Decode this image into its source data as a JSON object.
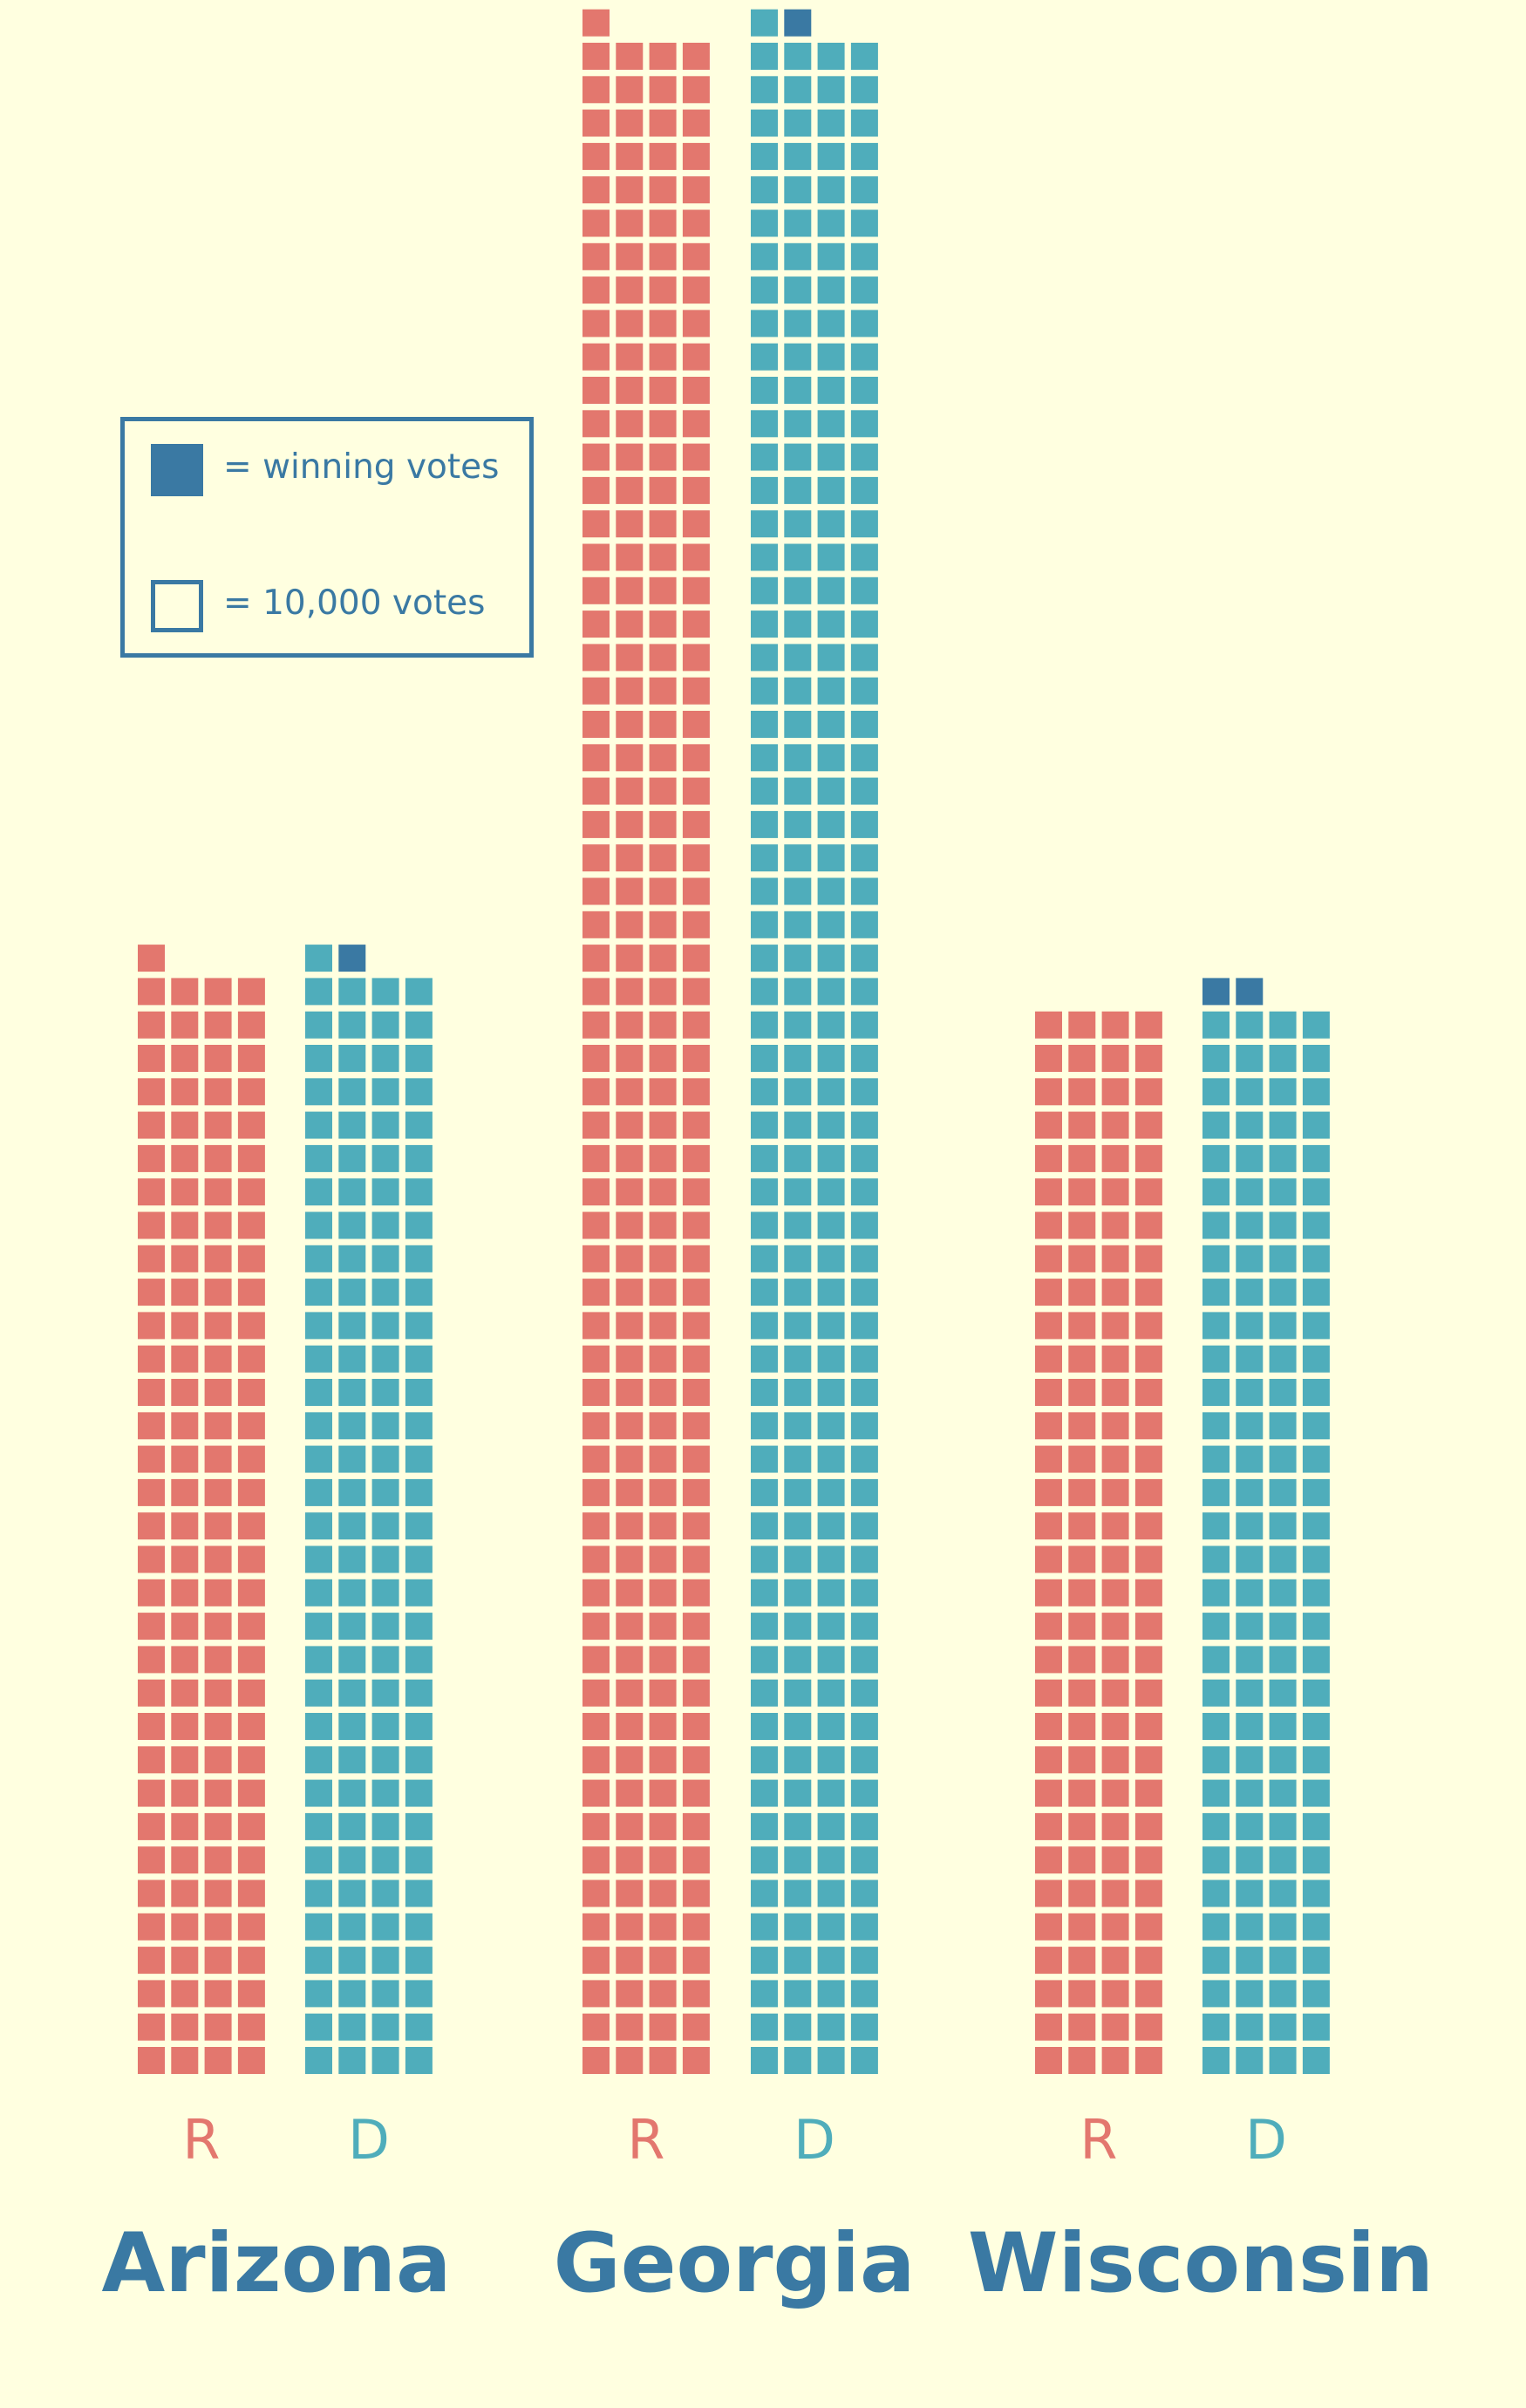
{
  "legend": {
    "winning_label": "= winning votes",
    "unit_label": "= 10,000 votes"
  },
  "colors": {
    "background": "#ffffe0",
    "republican": "#e3776e",
    "democrat": "#4fadbb",
    "winning": "#3a79a3",
    "state_label": "#3a79a3"
  },
  "chart_data": {
    "type": "bar",
    "subtype": "waffle-columns",
    "unit": "10,000 votes per square",
    "categories": [
      "Arizona",
      "Georgia",
      "Wisconsin"
    ],
    "series": [
      {
        "name": "R",
        "values": [
          133,
          245,
          128
        ]
      },
      {
        "name": "D",
        "values": [
          134,
          246,
          130
        ]
      }
    ],
    "winning_squares": [
      1,
      1,
      2
    ]
  }
}
